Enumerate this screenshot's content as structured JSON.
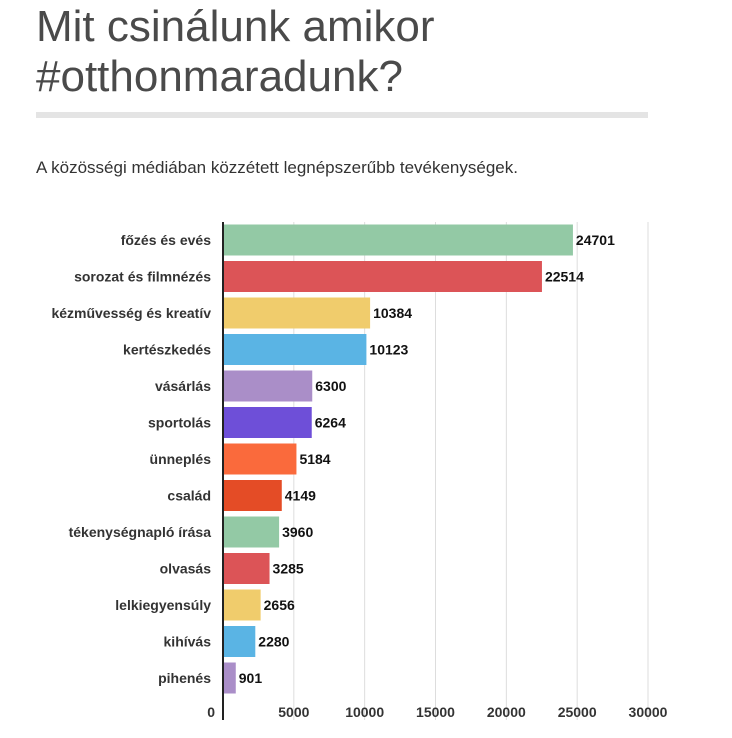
{
  "title": "Mit csinálunk amikor #otthonmaradunk?",
  "subtitle": "A közösségi médiában közzétett legnépszerűbb tevékenységek.",
  "chart_data": {
    "type": "bar",
    "orientation": "horizontal",
    "categories": [
      "főzés és evés",
      "sorozat és filmnézés",
      "kézművesség és kreatív",
      "kertészkedés",
      "vásárlás",
      "sportolás",
      "ünneplés",
      "család",
      "tékenységnapló írása",
      "olvasás",
      "lelkiegyensúly",
      "kihívás",
      "pihenés"
    ],
    "values": [
      24701,
      22514,
      10384,
      10123,
      6300,
      6264,
      5184,
      4149,
      3960,
      3285,
      2656,
      2280,
      901
    ],
    "colors": [
      "#93c9a5",
      "#dc5457",
      "#f0cc6c",
      "#5ab4e4",
      "#aa8ec8",
      "#6e4fd8",
      "#fa6a3c",
      "#e44c26",
      "#93c9a5",
      "#dc5457",
      "#f0cc6c",
      "#5ab4e4",
      "#aa8ec8"
    ],
    "xlim": [
      0,
      30000
    ],
    "xticks": [
      0,
      5000,
      10000,
      15000,
      20000,
      25000,
      30000
    ],
    "grid": true,
    "data_labels": true,
    "title": "Mit csinálunk amikor #otthonmaradunk?",
    "subtitle": "A közösségi médiában közzétett legnépszerűbb tevékenységek."
  }
}
